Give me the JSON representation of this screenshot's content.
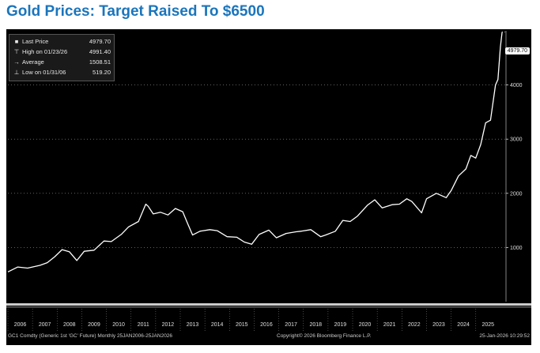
{
  "title": "Gold Prices: Target Raised To $6500",
  "colors": {
    "title": "#1b75bc",
    "background": "#000000",
    "line": "#ffffff",
    "grid": "#9a9a9a"
  },
  "legend": [
    {
      "symbol": "■",
      "label": "Last Price",
      "value": "4979.70"
    },
    {
      "symbol": "⊤",
      "label": "High on 01/23/26",
      "value": "4991.40"
    },
    {
      "symbol": "→",
      "label": "Average",
      "value": "1508.51"
    },
    {
      "symbol": "⊥",
      "label": "Low on 01/31/06",
      "value": "519.20"
    }
  ],
  "last_price_tag": "4979.70",
  "footer": {
    "left": "GC1 Comdty (Generic 1st 'GC' Future) Monthly 25JAN2006-25JAN2026",
    "center": "Copyright© 2026 Bloomberg Finance L.P.",
    "right": "25-Jan-2026 10:29:52"
  },
  "chart_data": {
    "type": "line",
    "title": "Gold Prices: Target Raised To $6500",
    "xlabel": "",
    "ylabel": "",
    "grid": true,
    "ylim": [
      0,
      5000
    ],
    "xlim": [
      2006.0,
      2026.1
    ],
    "yticks": [
      1000,
      2000,
      3000,
      4000
    ],
    "ytick_labels": [
      "1000",
      "2000",
      "3000",
      "4000"
    ],
    "xtick_labels": [
      "2006",
      "2007",
      "2008",
      "2009",
      "2010",
      "2011",
      "2012",
      "2013",
      "2014",
      "2015",
      "2016",
      "2017",
      "2018",
      "2019",
      "2020",
      "2021",
      "2022",
      "2023",
      "2024",
      "2025"
    ],
    "series": [
      {
        "name": "GC1 Comdty Monthly",
        "x": [
          2006.0,
          2006.4,
          2006.8,
          2007.3,
          2007.6,
          2007.9,
          2008.2,
          2008.5,
          2008.8,
          2009.1,
          2009.5,
          2009.9,
          2010.2,
          2010.6,
          2010.9,
          2011.3,
          2011.6,
          2011.7,
          2011.9,
          2012.2,
          2012.5,
          2012.8,
          2013.1,
          2013.3,
          2013.5,
          2013.8,
          2014.2,
          2014.5,
          2014.9,
          2015.3,
          2015.6,
          2015.9,
          2016.2,
          2016.6,
          2016.9,
          2017.3,
          2017.7,
          2017.9,
          2018.3,
          2018.7,
          2018.9,
          2019.3,
          2019.6,
          2019.9,
          2020.2,
          2020.6,
          2020.9,
          2021.2,
          2021.6,
          2021.9,
          2022.2,
          2022.4,
          2022.8,
          2023.0,
          2023.4,
          2023.8,
          2024.0,
          2024.3,
          2024.6,
          2024.8,
          2025.0,
          2025.2,
          2025.4,
          2025.6,
          2025.8,
          2025.9,
          2026.0,
          2026.07
        ],
        "values": [
          550,
          640,
          620,
          670,
          720,
          830,
          960,
          920,
          760,
          930,
          950,
          1120,
          1110,
          1240,
          1380,
          1480,
          1800,
          1760,
          1620,
          1650,
          1600,
          1720,
          1660,
          1440,
          1230,
          1300,
          1330,
          1310,
          1200,
          1190,
          1100,
          1060,
          1240,
          1320,
          1180,
          1260,
          1290,
          1300,
          1330,
          1200,
          1230,
          1300,
          1500,
          1480,
          1580,
          1780,
          1880,
          1730,
          1790,
          1800,
          1900,
          1850,
          1640,
          1900,
          2000,
          1920,
          2050,
          2320,
          2450,
          2700,
          2650,
          2900,
          3300,
          3350,
          4000,
          4100,
          4700,
          4979.7
        ]
      }
    ]
  }
}
